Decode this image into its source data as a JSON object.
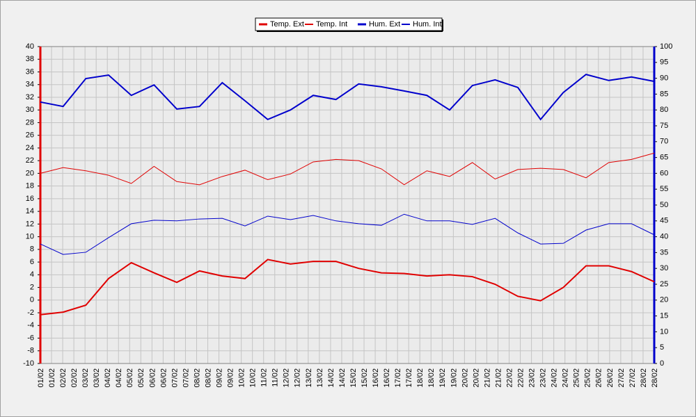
{
  "chart_data": {
    "type": "line",
    "xticks": [
      "01/02",
      "01/02",
      "02/02",
      "02/02",
      "03/02",
      "03/02",
      "04/02",
      "04/02",
      "05/02",
      "05/02",
      "06/02",
      "06/02",
      "07/02",
      "07/02",
      "08/02",
      "08/02",
      "09/02",
      "09/02",
      "10/02",
      "10/02",
      "11/02",
      "11/02",
      "12/02",
      "12/02",
      "13/02",
      "13/02",
      "14/02",
      "14/02",
      "15/02",
      "15/02",
      "16/02",
      "16/02",
      "17/02",
      "17/02",
      "18/02",
      "18/02",
      "19/02",
      "19/02",
      "20/02",
      "20/02",
      "21/02",
      "21/02",
      "22/02",
      "22/02",
      "23/02",
      "23/02",
      "24/02",
      "24/02",
      "25/02",
      "25/02",
      "26/02",
      "26/02",
      "27/02",
      "27/02",
      "28/02",
      "28/02"
    ],
    "series": [
      {
        "name": "Temp. Ext",
        "color": "#e00000",
        "width": 2,
        "values": [
          -2.3,
          -1.9,
          -0.8,
          3.4,
          5.9,
          4.3,
          2.8,
          4.6,
          3.8,
          3.4,
          6.4,
          5.7,
          6.1,
          6.1,
          5.0,
          4.3,
          4.2,
          3.8,
          4.0,
          3.7,
          2.5,
          0.6,
          -0.1,
          2.0,
          5.4,
          5.4,
          4.5,
          2.9
        ]
      },
      {
        "name": "Temp. Int",
        "color": "#e00000",
        "width": 1,
        "values": [
          20.0,
          20.9,
          20.4,
          19.7,
          18.4,
          21.1,
          18.7,
          18.2,
          19.5,
          20.5,
          19.0,
          19.9,
          21.8,
          22.2,
          22.0,
          20.7,
          18.2,
          20.4,
          19.5,
          21.7,
          19.1,
          20.6,
          20.8,
          20.6,
          19.3,
          21.7,
          22.2,
          23.2
        ]
      },
      {
        "name": "Hum. Ext",
        "color": "#0000cc",
        "width": 2,
        "axis": "y2",
        "values": [
          82.5,
          81.1,
          89.9,
          91.0,
          84.6,
          87.9,
          80.3,
          81.1,
          88.6,
          82.9,
          77.0,
          80.0,
          84.6,
          83.3,
          88.2,
          87.3,
          86.0,
          84.6,
          80.0,
          87.7,
          89.5,
          87.1,
          77.0,
          85.5,
          91.2,
          89.3,
          90.4,
          89.0
        ]
      },
      {
        "name": "Hum. Int",
        "color": "#0000cc",
        "width": 1,
        "axis": "y2",
        "values": [
          37.7,
          34.4,
          35.1,
          39.7,
          44.1,
          45.2,
          45.0,
          45.6,
          45.8,
          43.4,
          46.5,
          45.4,
          46.7,
          45.0,
          44.1,
          43.6,
          47.1,
          45.0,
          45.0,
          43.9,
          45.8,
          41.2,
          37.7,
          37.9,
          42.1,
          44.1,
          44.1,
          40.6
        ]
      }
    ],
    "ylim": [
      -10,
      40
    ],
    "yticks": [
      -10,
      -8,
      -6,
      -4,
      -2,
      0,
      2,
      4,
      6,
      8,
      10,
      12,
      14,
      16,
      18,
      20,
      22,
      24,
      26,
      28,
      30,
      32,
      34,
      36,
      38,
      40
    ],
    "y2lim": [
      0,
      100
    ],
    "y2ticks": [
      0,
      5,
      10,
      15,
      20,
      25,
      30,
      35,
      40,
      45,
      50,
      55,
      60,
      65,
      70,
      75,
      80,
      85,
      90,
      95,
      100
    ],
    "grid": true,
    "legend": "top"
  }
}
